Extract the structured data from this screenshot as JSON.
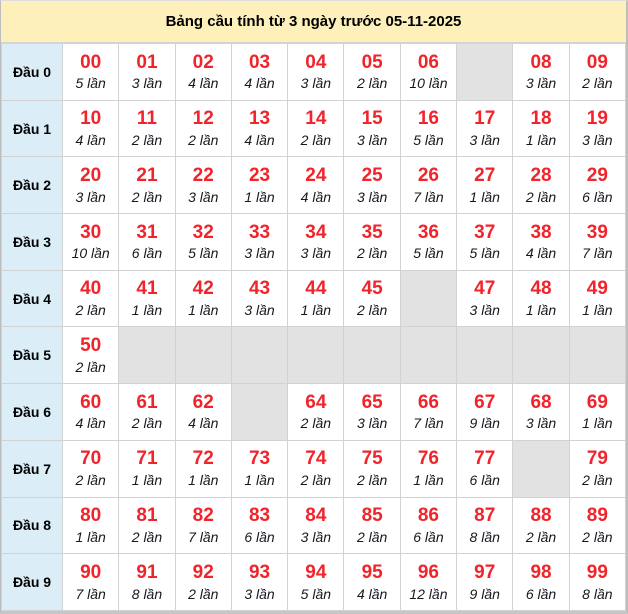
{
  "title": "Bảng cầu tính từ 3 ngày trước 05-11-2025",
  "colors": {
    "title_bg": "#fdf0bb",
    "header_bg": "#dbedf7",
    "number_red": "#f1232b",
    "count_text": "#17171f",
    "empty_bg": "#e2e2e2",
    "border": "#d2d2d2"
  },
  "table": {
    "rows": [
      {
        "label": "Đầu 0",
        "cells": [
          {
            "num": "00",
            "count": "5 lần"
          },
          {
            "num": "01",
            "count": "3 lần"
          },
          {
            "num": "02",
            "count": "4 lần"
          },
          {
            "num": "03",
            "count": "4 lần"
          },
          {
            "num": "04",
            "count": "3 lần"
          },
          {
            "num": "05",
            "count": "2 lần"
          },
          {
            "num": "06",
            "count": "10 lần"
          },
          null,
          {
            "num": "08",
            "count": "3 lần"
          },
          {
            "num": "09",
            "count": "2 lần"
          }
        ]
      },
      {
        "label": "Đầu 1",
        "cells": [
          {
            "num": "10",
            "count": "4 lần"
          },
          {
            "num": "11",
            "count": "2 lần"
          },
          {
            "num": "12",
            "count": "2 lần"
          },
          {
            "num": "13",
            "count": "4 lần"
          },
          {
            "num": "14",
            "count": "2 lần"
          },
          {
            "num": "15",
            "count": "3 lần"
          },
          {
            "num": "16",
            "count": "5 lần"
          },
          {
            "num": "17",
            "count": "3 lần"
          },
          {
            "num": "18",
            "count": "1 lần"
          },
          {
            "num": "19",
            "count": "3 lần"
          }
        ]
      },
      {
        "label": "Đầu 2",
        "cells": [
          {
            "num": "20",
            "count": "3 lần"
          },
          {
            "num": "21",
            "count": "2 lần"
          },
          {
            "num": "22",
            "count": "3 lần"
          },
          {
            "num": "23",
            "count": "1 lần"
          },
          {
            "num": "24",
            "count": "4 lần"
          },
          {
            "num": "25",
            "count": "3 lần"
          },
          {
            "num": "26",
            "count": "7 lần"
          },
          {
            "num": "27",
            "count": "1 lần"
          },
          {
            "num": "28",
            "count": "2 lần"
          },
          {
            "num": "29",
            "count": "6 lần"
          }
        ]
      },
      {
        "label": "Đầu 3",
        "cells": [
          {
            "num": "30",
            "count": "10 lần"
          },
          {
            "num": "31",
            "count": "6 lần"
          },
          {
            "num": "32",
            "count": "5 lần"
          },
          {
            "num": "33",
            "count": "3 lần"
          },
          {
            "num": "34",
            "count": "3 lần"
          },
          {
            "num": "35",
            "count": "2 lần"
          },
          {
            "num": "36",
            "count": "5 lần"
          },
          {
            "num": "37",
            "count": "5 lần"
          },
          {
            "num": "38",
            "count": "4 lần"
          },
          {
            "num": "39",
            "count": "7 lần"
          }
        ]
      },
      {
        "label": "Đầu 4",
        "cells": [
          {
            "num": "40",
            "count": "2 lần"
          },
          {
            "num": "41",
            "count": "1 lần"
          },
          {
            "num": "42",
            "count": "1 lần"
          },
          {
            "num": "43",
            "count": "3 lần"
          },
          {
            "num": "44",
            "count": "1 lần"
          },
          {
            "num": "45",
            "count": "2 lần"
          },
          null,
          {
            "num": "47",
            "count": "3 lần"
          },
          {
            "num": "48",
            "count": "1 lần"
          },
          {
            "num": "49",
            "count": "1 lần"
          }
        ]
      },
      {
        "label": "Đầu 5",
        "cells": [
          {
            "num": "50",
            "count": "2 lần"
          },
          null,
          null,
          null,
          null,
          null,
          null,
          null,
          null,
          null
        ]
      },
      {
        "label": "Đầu 6",
        "cells": [
          {
            "num": "60",
            "count": "4 lần"
          },
          {
            "num": "61",
            "count": "2 lần"
          },
          {
            "num": "62",
            "count": "4 lần"
          },
          null,
          {
            "num": "64",
            "count": "2 lần"
          },
          {
            "num": "65",
            "count": "3 lần"
          },
          {
            "num": "66",
            "count": "7 lần"
          },
          {
            "num": "67",
            "count": "9 lần"
          },
          {
            "num": "68",
            "count": "3 lần"
          },
          {
            "num": "69",
            "count": "1 lần"
          }
        ]
      },
      {
        "label": "Đầu 7",
        "cells": [
          {
            "num": "70",
            "count": "2 lần"
          },
          {
            "num": "71",
            "count": "1 lần"
          },
          {
            "num": "72",
            "count": "1 lần"
          },
          {
            "num": "73",
            "count": "1 lần"
          },
          {
            "num": "74",
            "count": "2 lần"
          },
          {
            "num": "75",
            "count": "2 lần"
          },
          {
            "num": "76",
            "count": "1 lần"
          },
          {
            "num": "77",
            "count": "6 lần"
          },
          null,
          {
            "num": "79",
            "count": "2 lần"
          }
        ]
      },
      {
        "label": "Đầu 8",
        "cells": [
          {
            "num": "80",
            "count": "1 lần"
          },
          {
            "num": "81",
            "count": "2 lần"
          },
          {
            "num": "82",
            "count": "7 lần"
          },
          {
            "num": "83",
            "count": "6 lần"
          },
          {
            "num": "84",
            "count": "3 lần"
          },
          {
            "num": "85",
            "count": "2 lần"
          },
          {
            "num": "86",
            "count": "6 lần"
          },
          {
            "num": "87",
            "count": "8 lần"
          },
          {
            "num": "88",
            "count": "2 lần"
          },
          {
            "num": "89",
            "count": "2 lần"
          }
        ]
      },
      {
        "label": "Đầu 9",
        "cells": [
          {
            "num": "90",
            "count": "7 lần"
          },
          {
            "num": "91",
            "count": "8 lần"
          },
          {
            "num": "92",
            "count": "2 lần"
          },
          {
            "num": "93",
            "count": "3 lần"
          },
          {
            "num": "94",
            "count": "5 lần"
          },
          {
            "num": "95",
            "count": "4 lần"
          },
          {
            "num": "96",
            "count": "12 lần"
          },
          {
            "num": "97",
            "count": "9 lần"
          },
          {
            "num": "98",
            "count": "6 lần"
          },
          {
            "num": "99",
            "count": "8 lần"
          }
        ]
      }
    ]
  }
}
